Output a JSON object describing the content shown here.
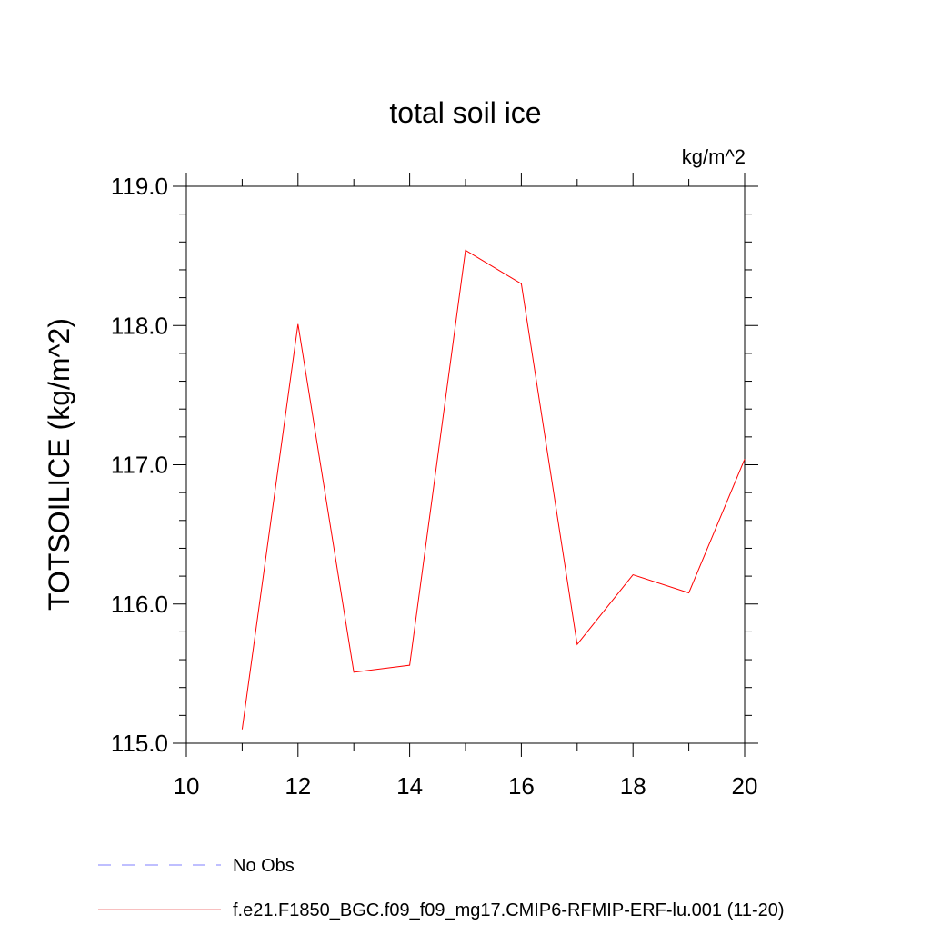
{
  "chart_data": {
    "type": "line",
    "title": "total soil ice",
    "units_label": "kg/m^2",
    "ylabel": "TOTSOILICE  (kg/m^2)",
    "xlabel": "",
    "xlim": [
      10,
      20
    ],
    "ylim": [
      115.0,
      119.0
    ],
    "x_ticks": [
      "10",
      "12",
      "14",
      "16",
      "18",
      "20"
    ],
    "y_ticks": [
      "115.0",
      "116.0",
      "117.0",
      "118.0",
      "119.0"
    ],
    "grid": false,
    "legend_placement": "bottom",
    "series": [
      {
        "name": "f.e21.F1850_BGC.f09_f09_mg17.CMIP6-RFMIP-ERF-lu.001 (11-20)",
        "color": "#ff0000",
        "x": [
          11,
          12,
          13,
          14,
          15,
          16,
          17,
          18,
          19,
          20
        ],
        "y": [
          115.1,
          118.01,
          115.51,
          115.56,
          118.54,
          118.3,
          115.71,
          116.21,
          116.08,
          117.04
        ]
      }
    ],
    "legend": [
      {
        "label": "No Obs",
        "color": "#7f7fff",
        "style": "dashed"
      },
      {
        "label": "f.e21.F1850_BGC.f09_f09_mg17.CMIP6-RFMIP-ERF-lu.001 (11-20)",
        "color": "#f08080",
        "style": "solid"
      }
    ]
  }
}
